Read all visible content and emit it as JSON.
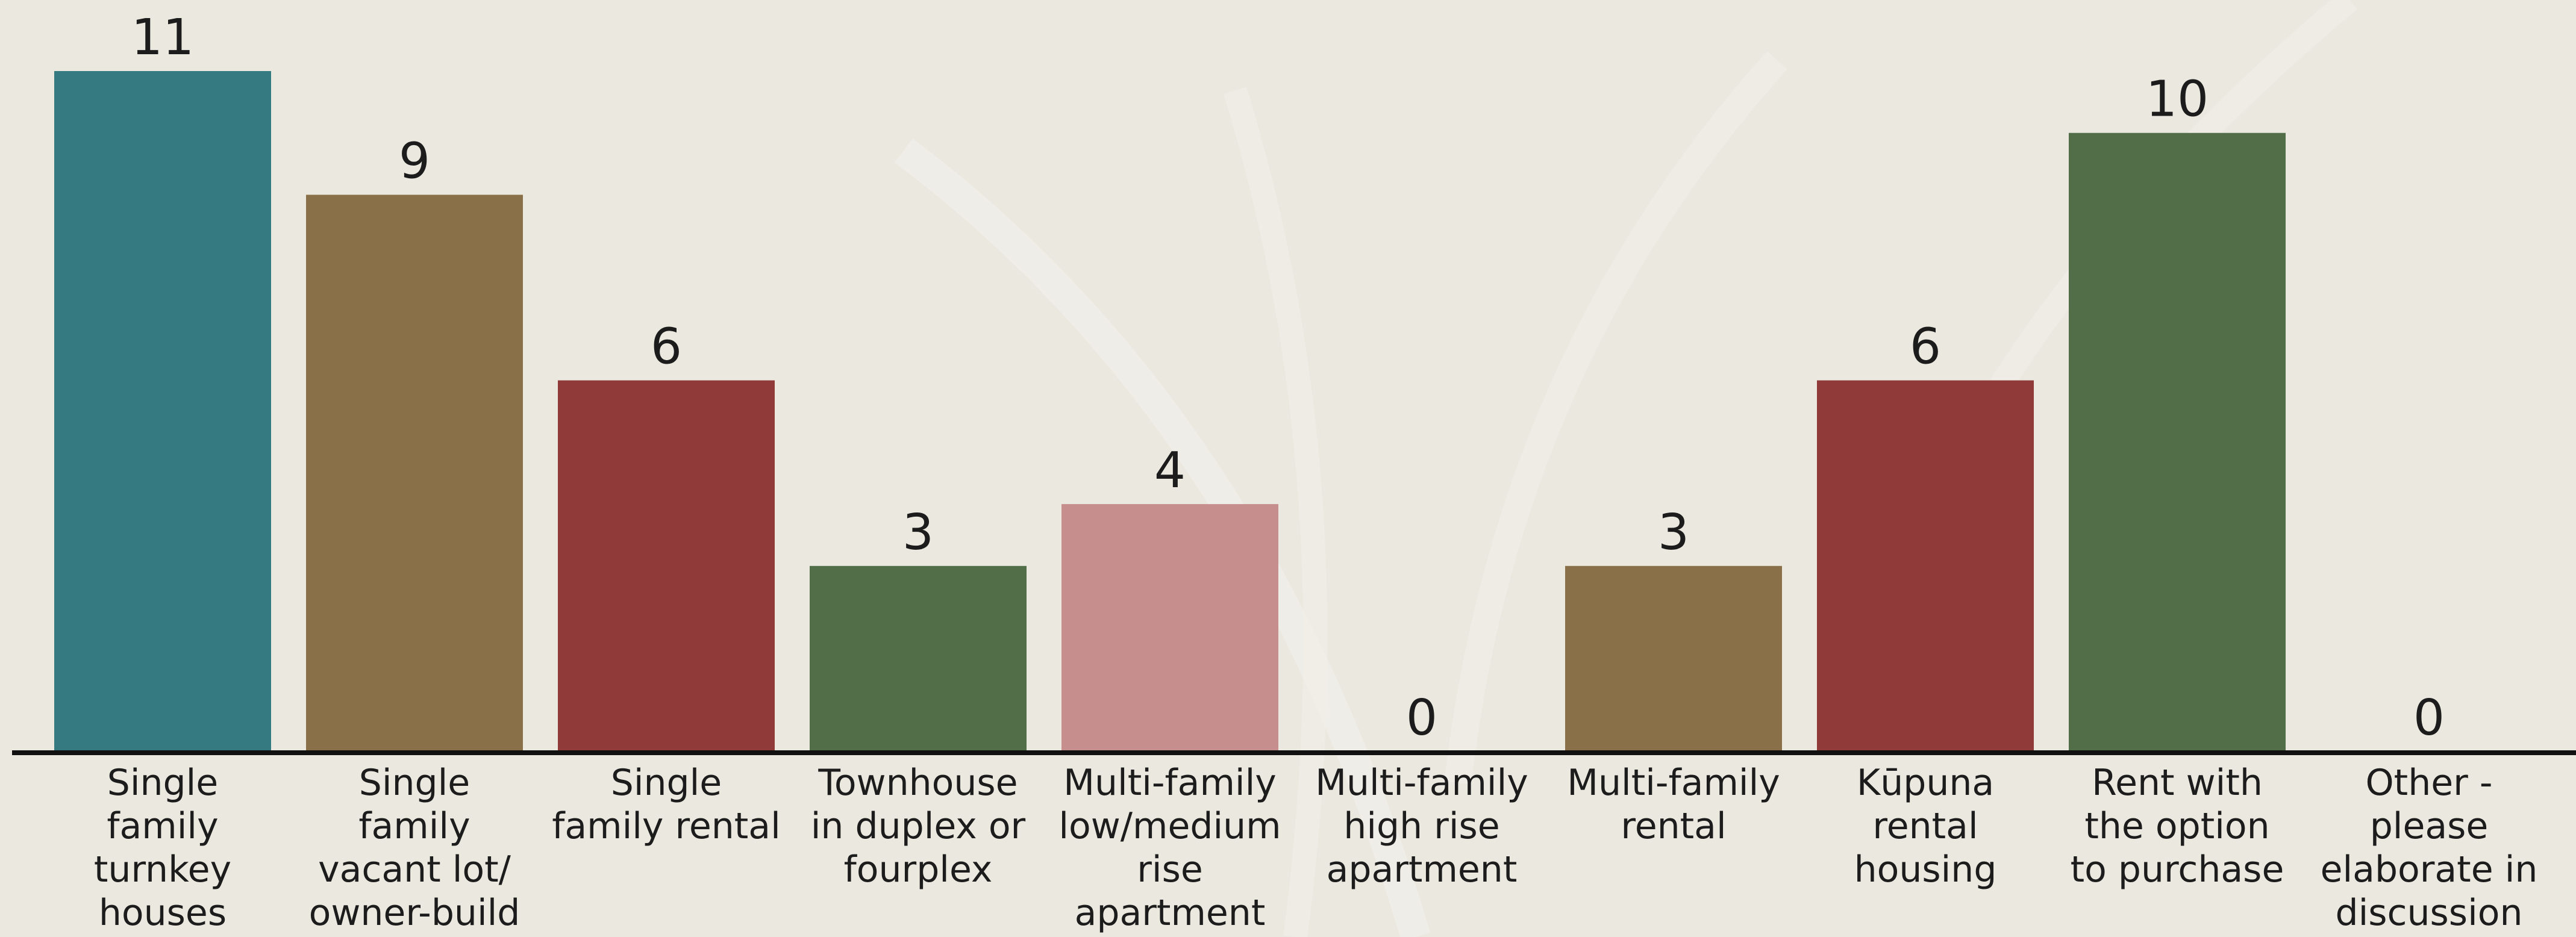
{
  "chart_data": {
    "type": "bar",
    "categories": [
      [
        "Single",
        "family",
        "turnkey",
        "houses"
      ],
      [
        "Single",
        "family",
        "vacant lot/",
        "owner-build"
      ],
      [
        "Single",
        "family rental"
      ],
      [
        "Townhouse",
        "in duplex or",
        "fourplex"
      ],
      [
        "Multi-family",
        "low/medium",
        "rise",
        "apartment"
      ],
      [
        "Multi-family",
        "high rise",
        "apartment"
      ],
      [
        "Multi-family",
        "rental"
      ],
      [
        "Kūpuna",
        "rental",
        "housing"
      ],
      [
        "Rent with",
        "the option",
        "to purchase"
      ],
      [
        "Other -",
        "please",
        "elaborate in",
        "discussion"
      ]
    ],
    "values": [
      11,
      9,
      6,
      3,
      4,
      0,
      3,
      6,
      10,
      0
    ],
    "colors": [
      "#347a80",
      "#8a7049",
      "#903a3a",
      "#516e48",
      "#c68f8e",
      "#c68f8e",
      "#8a7049",
      "#903a3a",
      "#516e48",
      "#516e48"
    ],
    "ylim": [
      0,
      11
    ],
    "grid": false,
    "legend": "none",
    "title": "",
    "xlabel": "",
    "ylabel": ""
  }
}
